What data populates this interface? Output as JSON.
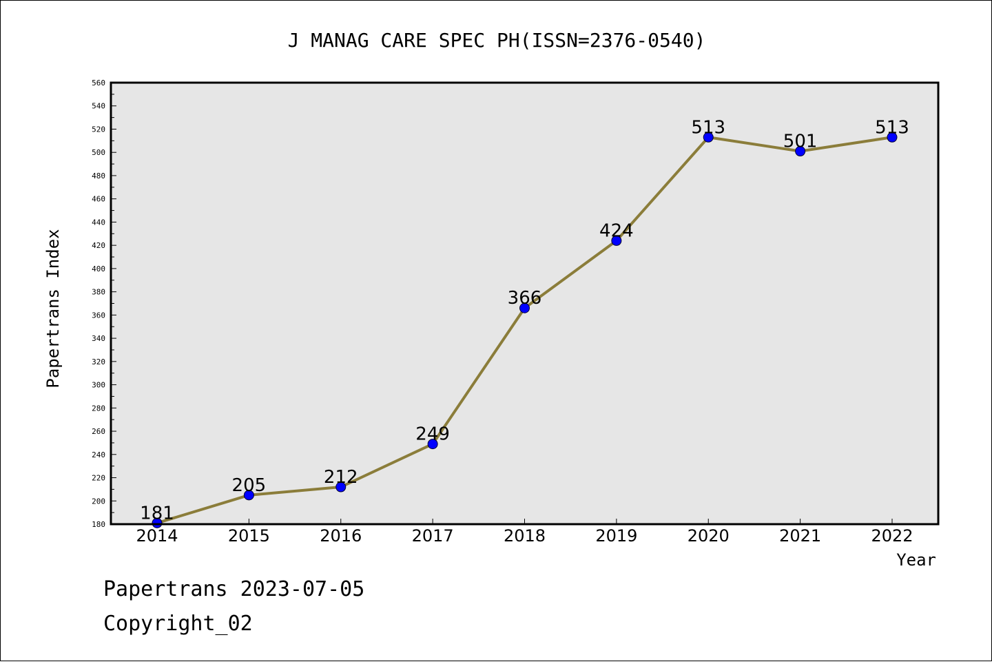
{
  "chart_data": {
    "type": "line",
    "title": "J MANAG CARE SPEC PH(ISSN=2376-0540)",
    "xlabel": "Year",
    "ylabel": "Papertrans Index",
    "x": [
      "2014",
      "2015",
      "2016",
      "2017",
      "2018",
      "2019",
      "2020",
      "2021",
      "2022"
    ],
    "values": [
      181,
      205,
      212,
      249,
      366,
      424,
      513,
      501,
      513
    ],
    "ylim": [
      180,
      560
    ],
    "yticks": [
      180,
      200,
      220,
      240,
      260,
      280,
      300,
      320,
      340,
      360,
      380,
      400,
      420,
      440,
      460,
      480,
      500,
      520,
      540,
      560
    ],
    "grid": false,
    "line_color": "#8B7D3A",
    "marker_color": "#0000FF",
    "background": "#E6E6E6"
  },
  "footer": {
    "line1": "Papertrans 2023-07-05",
    "line2": "Copyright_02"
  }
}
